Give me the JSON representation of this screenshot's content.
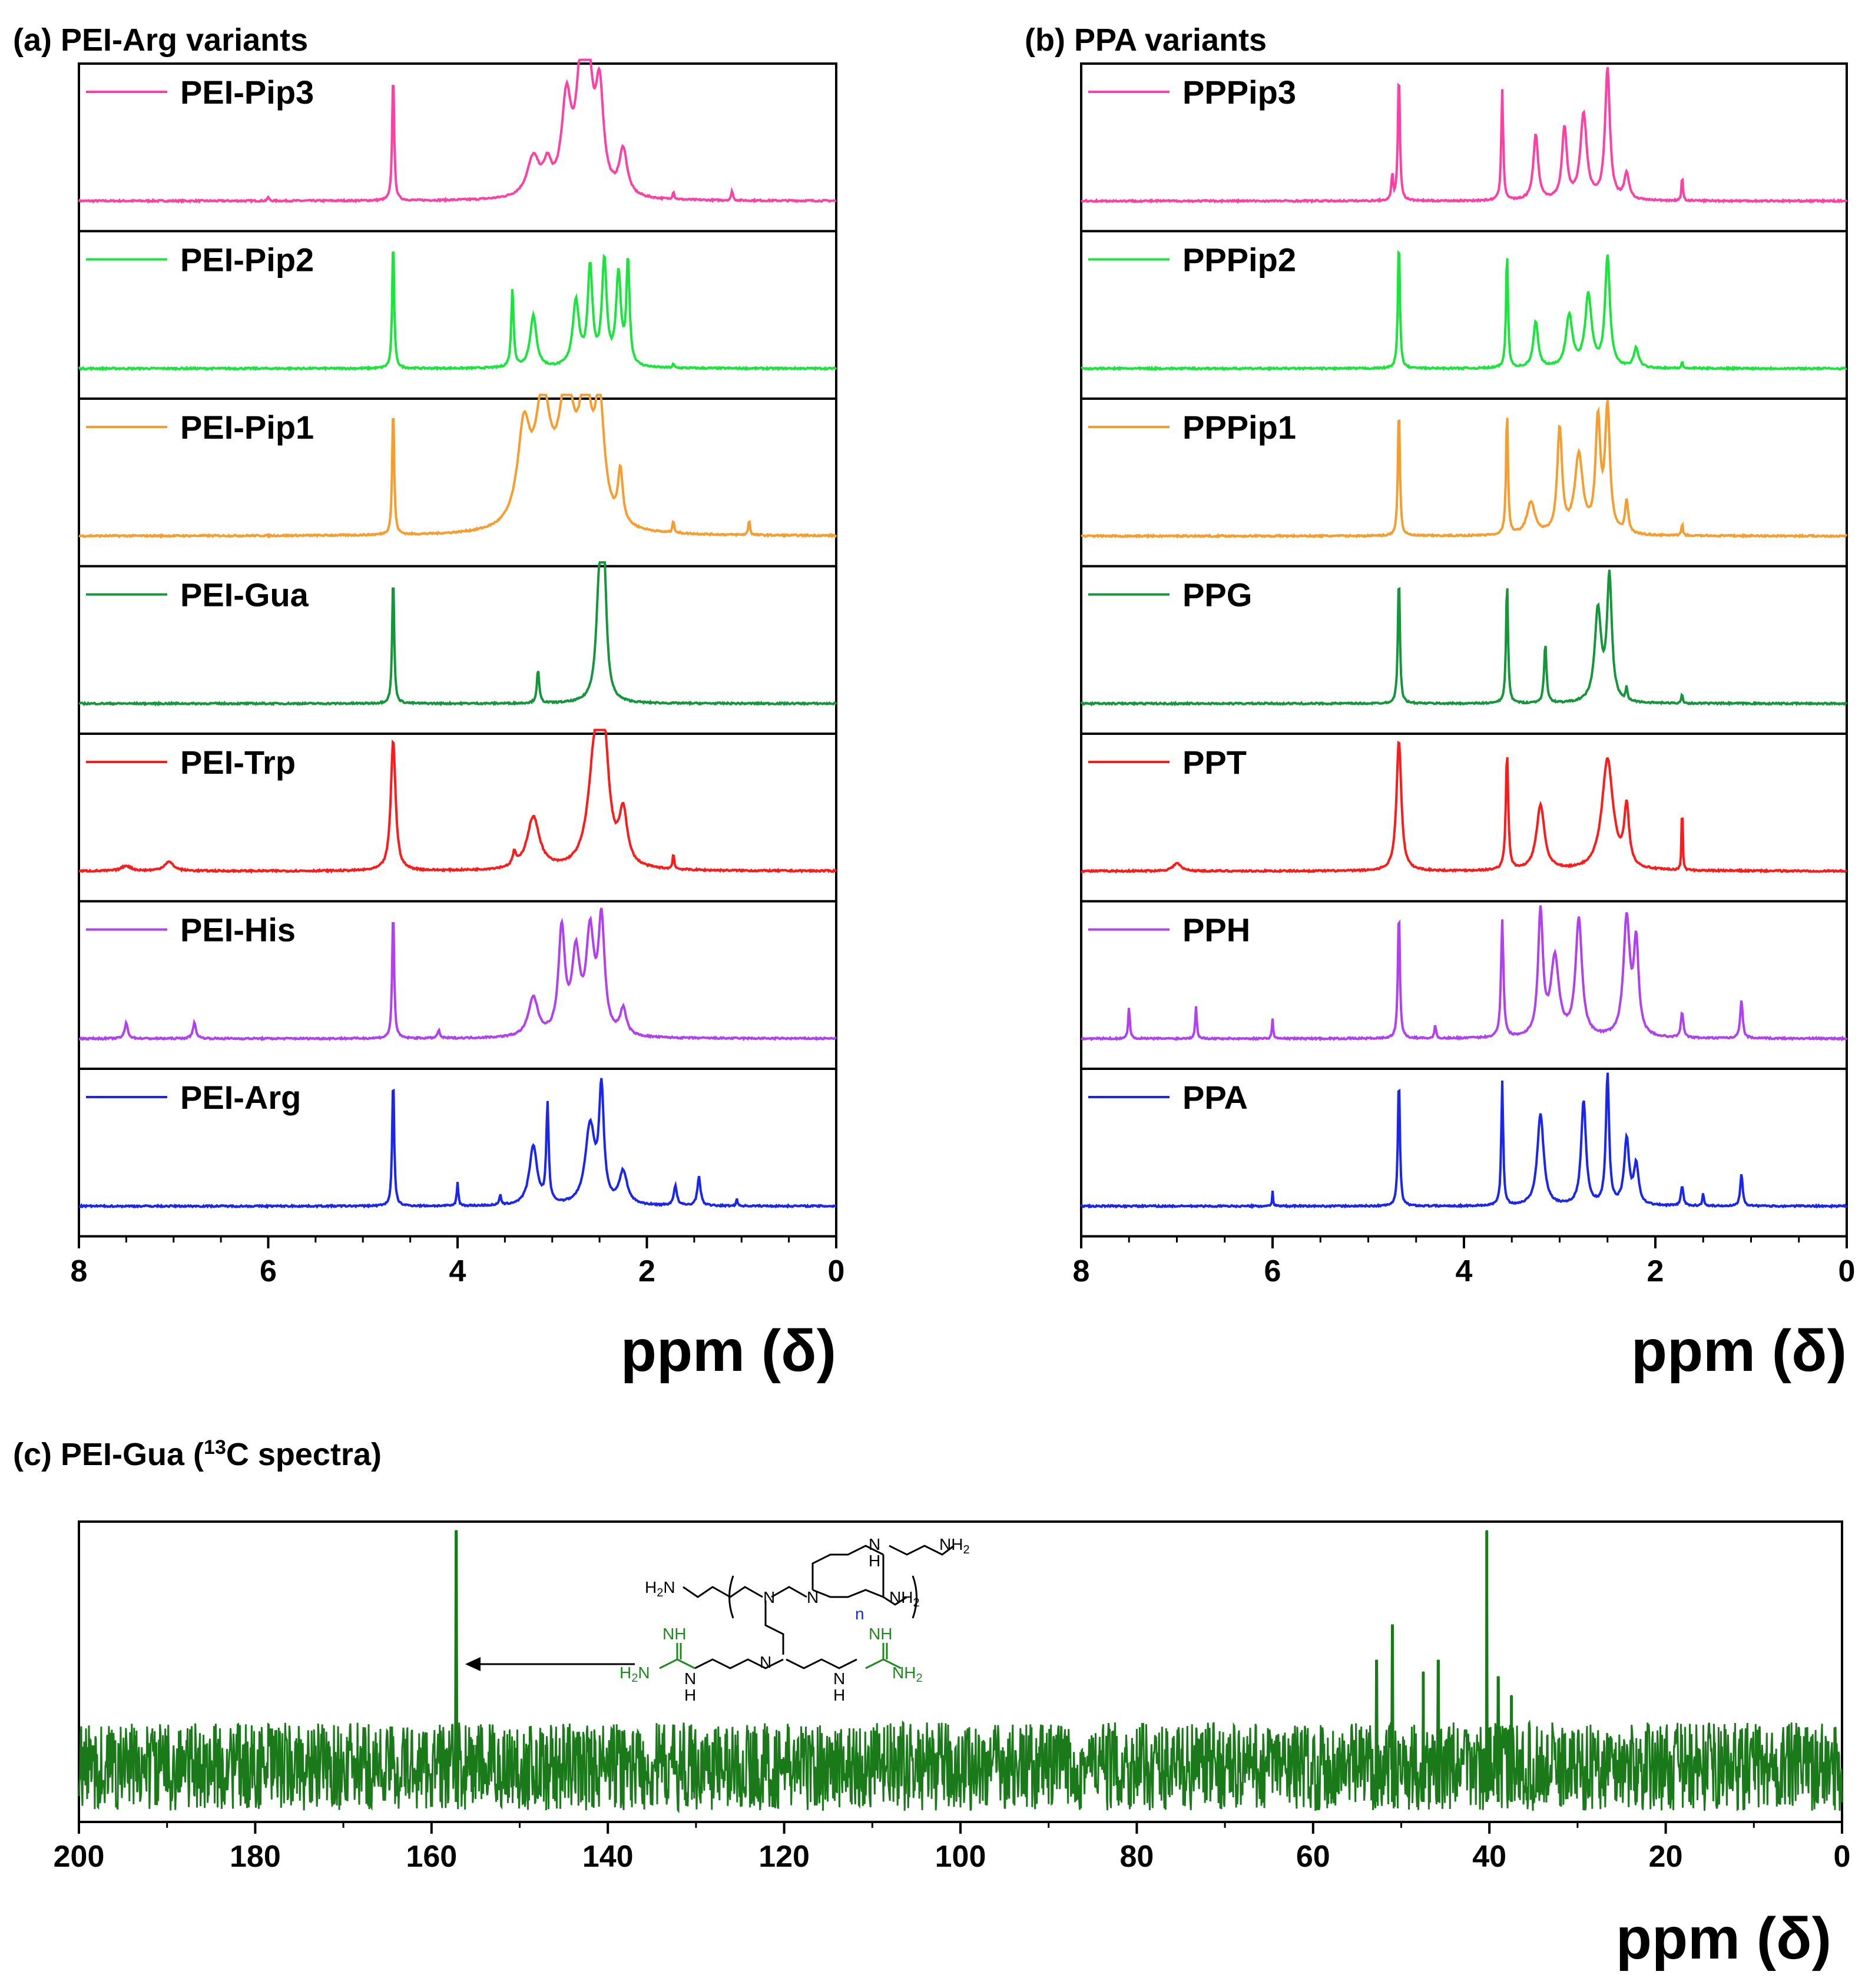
{
  "chart_data": [
    {
      "id": "a",
      "type": "line",
      "title": "(a) PEI-Arg variants",
      "xlabel": "ppm (δ)",
      "xlim": [
        8,
        0
      ],
      "xticks": [
        8,
        6,
        4,
        2,
        0
      ],
      "series": [
        {
          "name": "PEI-Pip3",
          "color": "#ff3fa4",
          "solvent": 4.68,
          "peaks": [
            [
              4.68,
              1.0,
              0.012
            ],
            [
              3.2,
              0.3,
              0.08
            ],
            [
              3.05,
              0.2,
              0.05
            ],
            [
              2.85,
              0.7,
              0.06
            ],
            [
              2.7,
              0.75,
              0.06
            ],
            [
              2.62,
              0.8,
              0.06
            ],
            [
              2.5,
              0.75,
              0.05
            ],
            [
              2.25,
              0.35,
              0.05
            ],
            [
              6.0,
              0.03,
              0.01
            ],
            [
              1.72,
              0.06,
              0.01
            ],
            [
              1.1,
              0.08,
              0.01
            ]
          ]
        },
        {
          "name": "PEI-Pip2",
          "color": "#19e63b",
          "solvent": 4.68,
          "peaks": [
            [
              4.68,
              1.0,
              0.012
            ],
            [
              3.42,
              0.6,
              0.015
            ],
            [
              3.2,
              0.4,
              0.04
            ],
            [
              2.75,
              0.5,
              0.04
            ],
            [
              2.6,
              0.75,
              0.03
            ],
            [
              2.45,
              0.8,
              0.03
            ],
            [
              2.3,
              0.7,
              0.03
            ],
            [
              2.2,
              0.8,
              0.02
            ],
            [
              1.72,
              0.03,
              0.01
            ]
          ]
        },
        {
          "name": "PEI-Pip1",
          "color": "#f79d2e",
          "solvent": 4.68,
          "peaks": [
            [
              4.68,
              1.0,
              0.012
            ],
            [
              3.3,
              0.7,
              0.08
            ],
            [
              3.1,
              0.9,
              0.1
            ],
            [
              2.85,
              0.95,
              0.1
            ],
            [
              2.65,
              0.9,
              0.08
            ],
            [
              2.5,
              0.85,
              0.06
            ],
            [
              2.28,
              0.4,
              0.03
            ],
            [
              1.72,
              0.1,
              0.01
            ],
            [
              0.92,
              0.12,
              0.01
            ]
          ]
        },
        {
          "name": "PEI-Gua",
          "color": "#14963a",
          "solvent": 4.68,
          "peaks": [
            [
              4.68,
              1.0,
              0.012
            ],
            [
              3.15,
              0.25,
              0.015
            ],
            [
              2.5,
              0.9,
              0.04
            ],
            [
              2.45,
              0.8,
              0.03
            ]
          ]
        },
        {
          "name": "PEI-Trp",
          "color": "#ff1a1a",
          "solvent": 4.68,
          "peaks": [
            [
              4.68,
              1.0,
              0.03
            ],
            [
              7.5,
              0.04,
              0.06
            ],
            [
              7.05,
              0.07,
              0.06
            ],
            [
              3.4,
              0.1,
              0.02
            ],
            [
              3.2,
              0.4,
              0.08
            ],
            [
              2.55,
              0.85,
              0.08
            ],
            [
              2.45,
              0.8,
              0.06
            ],
            [
              2.25,
              0.4,
              0.05
            ],
            [
              1.72,
              0.12,
              0.01
            ]
          ]
        },
        {
          "name": "PEI-His",
          "color": "#b040f0",
          "solvent": 4.68,
          "peaks": [
            [
              4.68,
              1.0,
              0.012
            ],
            [
              7.5,
              0.12,
              0.02
            ],
            [
              6.78,
              0.12,
              0.02
            ],
            [
              4.2,
              0.06,
              0.015
            ],
            [
              3.2,
              0.3,
              0.06
            ],
            [
              2.9,
              0.8,
              0.04
            ],
            [
              2.75,
              0.6,
              0.05
            ],
            [
              2.6,
              0.75,
              0.05
            ],
            [
              2.48,
              0.85,
              0.04
            ],
            [
              2.25,
              0.2,
              0.04
            ]
          ]
        },
        {
          "name": "PEI-Arg",
          "color": "#1a25f0",
          "solvent": 4.68,
          "peaks": [
            [
              4.68,
              1.0,
              0.012
            ],
            [
              4.0,
              0.18,
              0.01
            ],
            [
              3.55,
              0.08,
              0.01
            ],
            [
              3.2,
              0.45,
              0.05
            ],
            [
              3.05,
              0.75,
              0.015
            ],
            [
              2.6,
              0.6,
              0.06
            ],
            [
              2.48,
              0.85,
              0.03
            ],
            [
              2.25,
              0.25,
              0.05
            ],
            [
              1.7,
              0.15,
              0.02
            ],
            [
              1.45,
              0.22,
              0.02
            ],
            [
              1.05,
              0.05,
              0.01
            ]
          ]
        }
      ]
    },
    {
      "id": "b",
      "type": "line",
      "title": "(b) PPA variants",
      "xlabel": "ppm (δ)",
      "xlim": [
        8,
        0
      ],
      "xticks": [
        8,
        6,
        4,
        2,
        0
      ],
      "series": [
        {
          "name": "PPPip3",
          "color": "#ff3fa4",
          "solvent": 4.68,
          "peaks": [
            [
              4.68,
              1.0,
              0.012
            ],
            [
              4.75,
              0.2,
              0.01
            ],
            [
              3.6,
              0.85,
              0.012
            ],
            [
              3.25,
              0.5,
              0.03
            ],
            [
              2.95,
              0.55,
              0.03
            ],
            [
              2.75,
              0.65,
              0.04
            ],
            [
              2.5,
              1.0,
              0.03
            ],
            [
              2.3,
              0.2,
              0.03
            ],
            [
              1.72,
              0.2,
              0.008
            ]
          ]
        },
        {
          "name": "PPPip2",
          "color": "#19e63b",
          "solvent": 4.68,
          "peaks": [
            [
              4.68,
              1.0,
              0.012
            ],
            [
              3.55,
              0.9,
              0.012
            ],
            [
              3.25,
              0.35,
              0.03
            ],
            [
              2.9,
              0.4,
              0.04
            ],
            [
              2.7,
              0.55,
              0.04
            ],
            [
              2.5,
              0.85,
              0.03
            ],
            [
              2.2,
              0.15,
              0.03
            ],
            [
              1.72,
              0.05,
              0.008
            ]
          ]
        },
        {
          "name": "PPPip1",
          "color": "#f79d2e",
          "solvent": 4.68,
          "peaks": [
            [
              4.68,
              1.0,
              0.012
            ],
            [
              3.55,
              0.95,
              0.012
            ],
            [
              3.3,
              0.25,
              0.05
            ],
            [
              3.0,
              0.8,
              0.03
            ],
            [
              2.8,
              0.6,
              0.05
            ],
            [
              2.6,
              0.85,
              0.03
            ],
            [
              2.5,
              0.95,
              0.03
            ],
            [
              2.3,
              0.25,
              0.02
            ],
            [
              1.72,
              0.1,
              0.008
            ]
          ]
        },
        {
          "name": "PPG",
          "color": "#14963a",
          "solvent": 4.68,
          "peaks": [
            [
              4.68,
              1.0,
              0.012
            ],
            [
              3.55,
              0.95,
              0.012
            ],
            [
              3.15,
              0.45,
              0.015
            ],
            [
              2.6,
              0.7,
              0.04
            ],
            [
              2.48,
              0.95,
              0.03
            ],
            [
              2.3,
              0.1,
              0.01
            ],
            [
              1.72,
              0.08,
              0.008
            ]
          ]
        },
        {
          "name": "PPT",
          "color": "#ff1a1a",
          "solvent": 4.68,
          "peaks": [
            [
              4.68,
              1.0,
              0.03
            ],
            [
              7.0,
              0.06,
              0.05
            ],
            [
              3.55,
              0.9,
              0.015
            ],
            [
              3.2,
              0.5,
              0.05
            ],
            [
              2.5,
              0.85,
              0.07
            ],
            [
              2.3,
              0.45,
              0.03
            ],
            [
              1.72,
              0.6,
              0.006
            ]
          ]
        },
        {
          "name": "PPH",
          "color": "#b040f0",
          "solvent": 4.68,
          "peaks": [
            [
              4.68,
              1.0,
              0.012
            ],
            [
              7.5,
              0.25,
              0.01
            ],
            [
              6.8,
              0.25,
              0.01
            ],
            [
              6.0,
              0.15,
              0.008
            ],
            [
              4.3,
              0.1,
              0.01
            ],
            [
              3.6,
              0.9,
              0.015
            ],
            [
              3.2,
              0.95,
              0.03
            ],
            [
              3.05,
              0.6,
              0.05
            ],
            [
              2.8,
              0.9,
              0.04
            ],
            [
              2.3,
              0.9,
              0.04
            ],
            [
              2.2,
              0.7,
              0.03
            ],
            [
              1.72,
              0.2,
              0.015
            ],
            [
              1.1,
              0.3,
              0.015
            ]
          ]
        },
        {
          "name": "PPA",
          "color": "#1a25f0",
          "solvent": 4.68,
          "peaks": [
            [
              4.68,
              1.0,
              0.012
            ],
            [
              6.0,
              0.12,
              0.006
            ],
            [
              3.6,
              0.95,
              0.012
            ],
            [
              3.2,
              0.7,
              0.04
            ],
            [
              2.75,
              0.8,
              0.03
            ],
            [
              2.5,
              1.0,
              0.02
            ],
            [
              2.3,
              0.5,
              0.03
            ],
            [
              2.2,
              0.3,
              0.03
            ],
            [
              1.72,
              0.15,
              0.015
            ],
            [
              1.5,
              0.1,
              0.01
            ],
            [
              1.1,
              0.25,
              0.015
            ]
          ]
        }
      ]
    },
    {
      "id": "c",
      "type": "line",
      "title_main": "(c) PEI-Gua (",
      "title_sup": "13",
      "title_end": "C spectra)",
      "xlabel": "ppm (δ)",
      "xlim": [
        200,
        0
      ],
      "xticks": [
        200,
        180,
        160,
        140,
        120,
        100,
        80,
        60,
        40,
        20,
        0
      ],
      "series": [
        {
          "name": "PEI-Gua 13C",
          "color": "#1a7a1a",
          "peaks": [
            [
              157.2,
              1.0
            ],
            [
              40.3,
              1.0
            ],
            [
              52.8,
              0.45
            ],
            [
              51.0,
              0.6
            ],
            [
              47.5,
              0.4
            ],
            [
              45.8,
              0.45
            ],
            [
              39.0,
              0.38
            ],
            [
              37.5,
              0.3
            ]
          ]
        }
      ]
    }
  ],
  "structure": {
    "labels": {
      "nh2_top_right": "NH",
      "h2n_left": "H",
      "nh2_right": "NH",
      "n_repeat": "n",
      "nh_top": "H",
      "gua_nh_left": "NH",
      "gua_h2n_left": "H",
      "gua_nh_mid_left": "N",
      "gua_h_mid_left": "H",
      "gua_n_center": "N",
      "gua_nh_mid_right": "N",
      "gua_h_mid_right": "H",
      "gua_nh_right": "NH",
      "gua_nh2_right": "NH",
      "sub2": "2",
      "n_label": "N"
    }
  }
}
